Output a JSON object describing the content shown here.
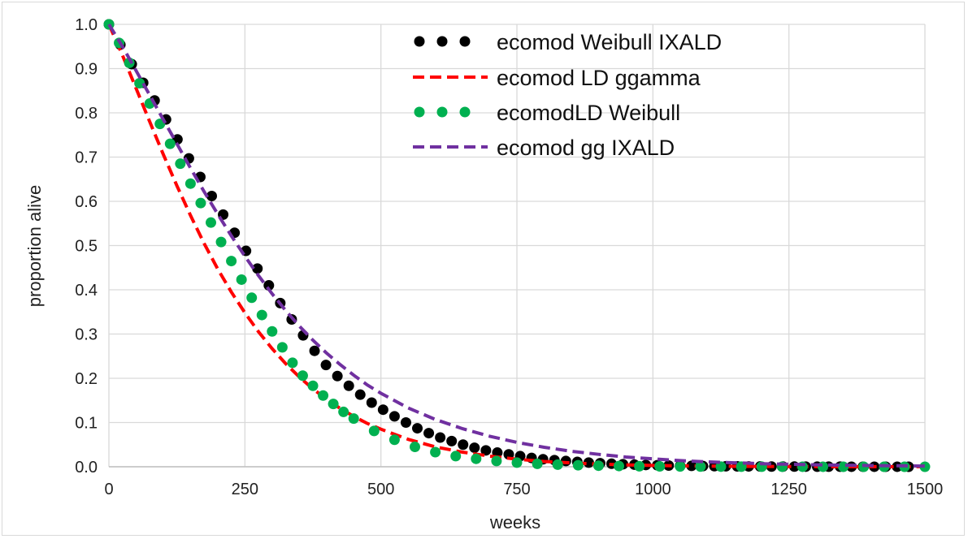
{
  "chart_data": {
    "type": "line",
    "title": "",
    "xlabel": "weeks",
    "ylabel": "proportion alive",
    "xlim": [
      0,
      1500
    ],
    "ylim": [
      0,
      1.0
    ],
    "x_ticks": [
      "0",
      "250",
      "500",
      "750",
      "1000",
      "1250",
      "1500"
    ],
    "y_ticks": [
      "0.0",
      "0.1",
      "0.2",
      "0.3",
      "0.4",
      "0.5",
      "0.6",
      "0.7",
      "0.8",
      "0.9",
      "1.0"
    ],
    "grid": true,
    "legend_position": "top-right",
    "series": [
      {
        "name": "ecomod Weibull IXALD",
        "style": "dots",
        "color": "#000000",
        "x": [
          0,
          21,
          42,
          63,
          84,
          105,
          126,
          147,
          168,
          189,
          210,
          231,
          252,
          273,
          294,
          315,
          336,
          357,
          378,
          399,
          420,
          441,
          462,
          483,
          504,
          525,
          546,
          567,
          588,
          609,
          630,
          651,
          672,
          693,
          714,
          735,
          756,
          777,
          798,
          819,
          840,
          861,
          882,
          903,
          924,
          945,
          966,
          987,
          1008,
          1029,
          1050,
          1071,
          1092,
          1113,
          1134,
          1155,
          1176,
          1197,
          1218,
          1239,
          1260,
          1281,
          1302,
          1323,
          1344,
          1365,
          1386,
          1407,
          1428,
          1449,
          1470
        ],
        "y": [
          1.0,
          0.954,
          0.91,
          0.868,
          0.828,
          0.785,
          0.74,
          0.697,
          0.655,
          0.612,
          0.57,
          0.529,
          0.488,
          0.448,
          0.41,
          0.37,
          0.333,
          0.297,
          0.262,
          0.23,
          0.205,
          0.183,
          0.163,
          0.145,
          0.129,
          0.114,
          0.1,
          0.087,
          0.076,
          0.066,
          0.058,
          0.05,
          0.043,
          0.037,
          0.032,
          0.028,
          0.024,
          0.02,
          0.017,
          0.015,
          0.013,
          0.011,
          0.0094,
          0.008,
          0.0068,
          0.0057,
          0.0048,
          0.004,
          0.0034,
          0.0028,
          0.0024,
          0.002,
          0.0016,
          0.0014,
          0.0011,
          0.0009,
          0.0008,
          0.0006,
          0.0005,
          0.0004,
          0.0004,
          0.0003,
          0.0002,
          0.0002,
          0.0002,
          0.0001,
          0.0001,
          0.0001,
          0.0001,
          0.0001,
          0.0
        ]
      },
      {
        "name": "ecomod LD ggamma",
        "style": "dashed",
        "color": "#ff0000",
        "x": [
          0,
          25,
          50,
          75,
          100,
          125,
          150,
          175,
          200,
          225,
          250,
          275,
          300,
          325,
          350,
          375,
          400,
          425,
          450,
          475,
          500,
          550,
          600,
          650,
          700,
          750,
          800,
          850,
          900,
          950,
          1000,
          1050,
          1100,
          1150,
          1200,
          1250,
          1300,
          1350,
          1400,
          1450,
          1500
        ],
        "y": [
          1.0,
          0.93,
          0.855,
          0.78,
          0.706,
          0.635,
          0.568,
          0.505,
          0.447,
          0.395,
          0.348,
          0.305,
          0.267,
          0.233,
          0.203,
          0.176,
          0.153,
          0.132,
          0.114,
          0.098,
          0.085,
          0.062,
          0.045,
          0.033,
          0.024,
          0.017,
          0.012,
          0.0086,
          0.0061,
          0.0043,
          0.003,
          0.0021,
          0.0015,
          0.001,
          0.0007,
          0.0005,
          0.0003,
          0.0002,
          0.0002,
          0.0001,
          0.0001
        ]
      },
      {
        "name": "ecomodLD Weibull",
        "style": "dots",
        "color": "#00b050",
        "x": [
          0,
          18.75,
          37.5,
          56.25,
          75,
          93.75,
          112.5,
          131.25,
          150,
          168.75,
          187.5,
          206.25,
          225,
          243.75,
          262.5,
          281.25,
          300,
          318.75,
          337.5,
          356.25,
          375,
          393.75,
          412.5,
          431.25,
          450,
          487.5,
          525,
          562.5,
          600,
          637.5,
          675,
          712.5,
          750,
          787.5,
          825,
          862.5,
          900,
          937.5,
          975,
          1012.5,
          1050,
          1087.5,
          1125,
          1162.5,
          1200,
          1237.5,
          1275,
          1312.5,
          1350,
          1387.5,
          1425,
          1462.5,
          1500
        ],
        "y": [
          1.0,
          0.958,
          0.913,
          0.867,
          0.821,
          0.775,
          0.73,
          0.685,
          0.64,
          0.596,
          0.552,
          0.508,
          0.465,
          0.423,
          0.382,
          0.343,
          0.306,
          0.27,
          0.235,
          0.206,
          0.183,
          0.161,
          0.142,
          0.124,
          0.109,
          0.081,
          0.061,
          0.045,
          0.033,
          0.024,
          0.018,
          0.013,
          0.0093,
          0.0067,
          0.0048,
          0.0034,
          0.0024,
          0.0017,
          0.0012,
          0.0009,
          0.0006,
          0.0004,
          0.0003,
          0.0002,
          0.0002,
          0.0001,
          0.0001,
          0.0001,
          0.0,
          0.0,
          0.0,
          0.0,
          0.0
        ]
      },
      {
        "name": "ecomod gg IXALD",
        "style": "dashed",
        "color": "#7030a0",
        "x": [
          0,
          25,
          50,
          75,
          100,
          125,
          150,
          175,
          200,
          225,
          250,
          275,
          300,
          325,
          350,
          375,
          400,
          425,
          450,
          475,
          500,
          550,
          600,
          650,
          700,
          750,
          800,
          850,
          900,
          950,
          1000,
          1050,
          1100,
          1150,
          1200,
          1250,
          1300,
          1350,
          1400,
          1450,
          1500
        ],
        "y": [
          1.0,
          0.95,
          0.895,
          0.84,
          0.785,
          0.73,
          0.675,
          0.622,
          0.571,
          0.522,
          0.476,
          0.432,
          0.391,
          0.353,
          0.318,
          0.286,
          0.257,
          0.231,
          0.207,
          0.185,
          0.166,
          0.133,
          0.107,
          0.086,
          0.069,
          0.055,
          0.044,
          0.035,
          0.028,
          0.022,
          0.018,
          0.014,
          0.011,
          0.009,
          0.007,
          0.0056,
          0.0044,
          0.0035,
          0.0028,
          0.0022,
          0.0017
        ]
      }
    ]
  }
}
